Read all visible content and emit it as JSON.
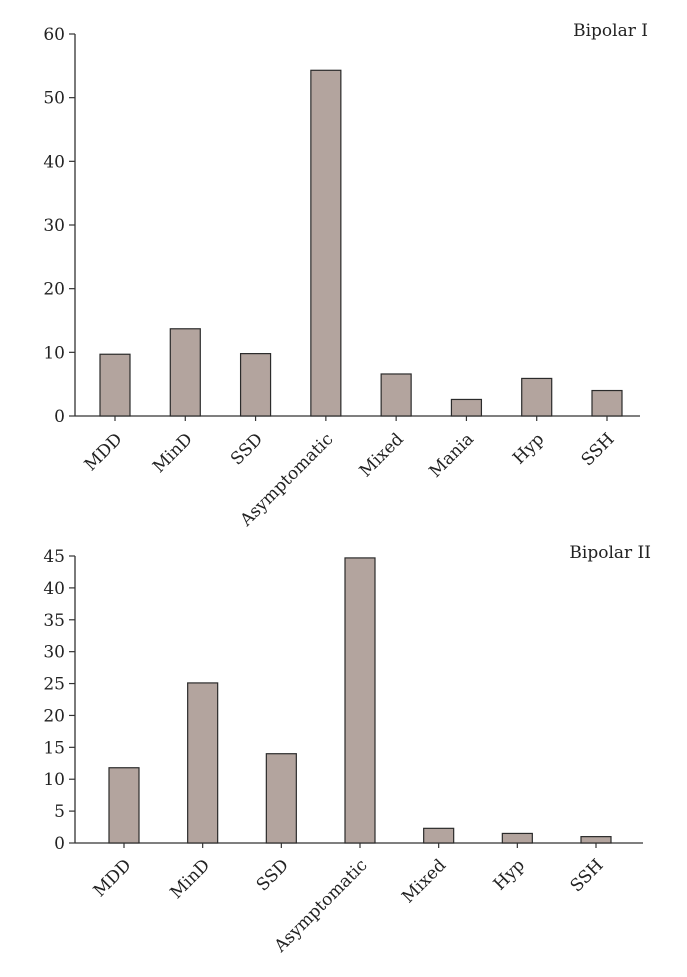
{
  "chart_data": [
    {
      "type": "bar",
      "title": "Bipolar I",
      "xlabel": "",
      "ylabel": "",
      "ylim": [
        0,
        60
      ],
      "yticks": [
        0,
        10,
        20,
        30,
        40,
        50,
        60
      ],
      "grid": false,
      "categories": [
        "MDD",
        "MinD",
        "SSD",
        "Asymptomatic",
        "Mixed",
        "Mania",
        "Hyp",
        "SSH"
      ],
      "values": [
        9.7,
        13.7,
        9.8,
        54.3,
        6.6,
        2.6,
        5.9,
        4.0
      ]
    },
    {
      "type": "bar",
      "title": "Bipolar II",
      "xlabel": "",
      "ylabel": "",
      "ylim": [
        0,
        45
      ],
      "yticks": [
        0,
        5,
        10,
        15,
        20,
        25,
        30,
        35,
        40,
        45
      ],
      "grid": false,
      "categories": [
        "MDD",
        "MinD",
        "SSD",
        "Asymptomatic",
        "Mixed",
        "Hyp",
        "SSH"
      ],
      "values": [
        11.8,
        25.1,
        14.0,
        44.7,
        2.3,
        1.5,
        1.0
      ]
    }
  ]
}
